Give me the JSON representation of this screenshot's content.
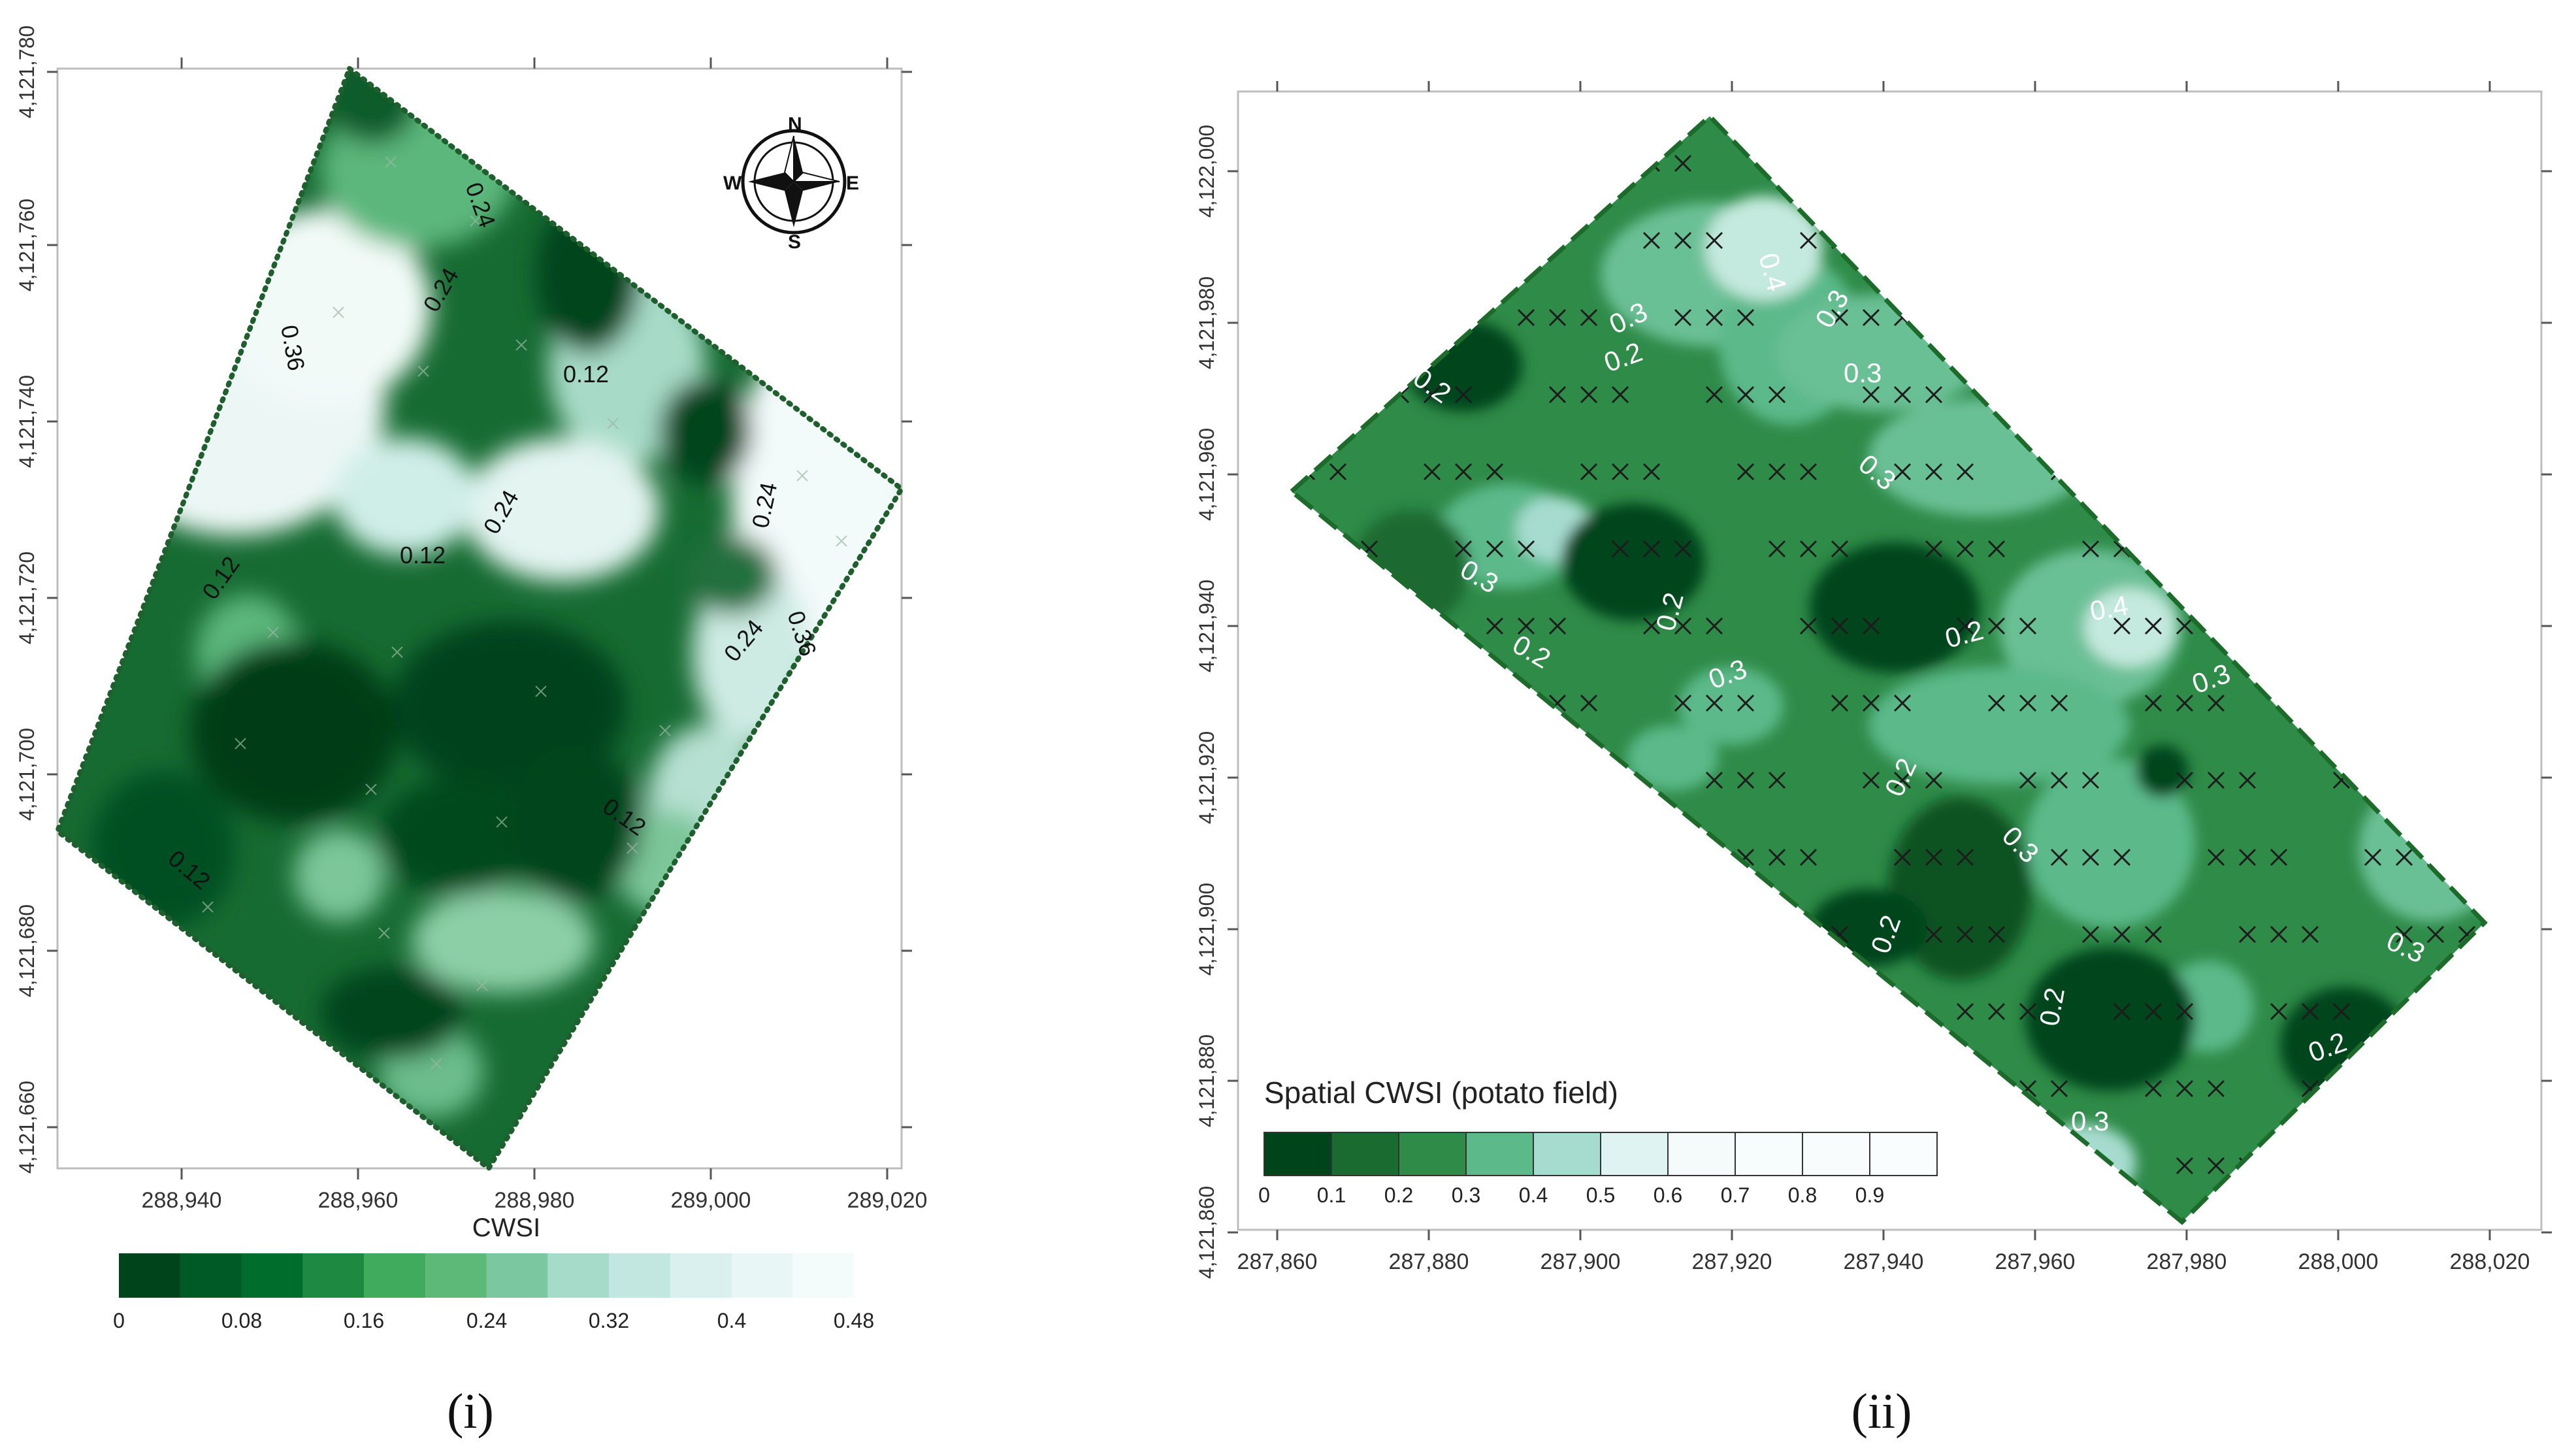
{
  "panels": [
    {
      "id": "i",
      "label_text": "(i)",
      "x_ticks": [
        "288,940",
        "288,960",
        "288,980",
        "289,000",
        "289,020"
      ],
      "y_ticks": [
        "4,121,660",
        "4,121,680",
        "4,121,700",
        "4,121,720",
        "4,121,740",
        "4,121,760",
        "4,121,780"
      ],
      "x_axis_title": "CWSI",
      "contour_labels": [
        "0.24",
        "0.24",
        "0.36",
        "0.12",
        "0.24",
        "0.24",
        "0.12",
        "0.12",
        "0.24",
        "0.36",
        "0.12",
        "0.12"
      ],
      "compass": {
        "n": "N",
        "s": "S",
        "e": "E",
        "w": "W"
      },
      "legend": {
        "ticks": [
          "0",
          "0.08",
          "0.16",
          "0.24",
          "0.32",
          "0.4",
          "0.48"
        ],
        "colors": [
          "#00441b",
          "#005a26",
          "#006d2c",
          "#1e8a41",
          "#41ab5d",
          "#5cb978",
          "#7bc8a0",
          "#a6dbc9",
          "#c1e7e0",
          "#d9f0ee",
          "#e8f6f6",
          "#f4fbfb"
        ]
      }
    },
    {
      "id": "ii",
      "label_text": "(ii)",
      "x_ticks": [
        "287,860",
        "287,880",
        "287,900",
        "287,920",
        "287,940",
        "287,960",
        "287,980",
        "288,000",
        "288,020"
      ],
      "y_ticks": [
        "4,121,860",
        "4,121,880",
        "4,121,900",
        "4,121,920",
        "4,121,940",
        "4,121,960",
        "4,121,980",
        "4,122,000"
      ],
      "contour_labels": [
        "0.2",
        "0.2",
        "0.3",
        "0.4",
        "0.3",
        "0.3",
        "0.3",
        "0.3",
        "0.2",
        "0.2",
        "0.3",
        "0.2",
        "0.4",
        "0.3",
        "0.2",
        "0.3",
        "0.2",
        "0.2",
        "0.3",
        "0.2",
        "0.3"
      ],
      "legend": {
        "title": "Spatial CWSI (potato field)",
        "ticks": [
          "0",
          "0.1",
          "0.2",
          "0.3",
          "0.4",
          "0.5",
          "0.6",
          "0.7",
          "0.8",
          "0.9"
        ],
        "colors": [
          "#00441b",
          "#1a6b30",
          "#2e8b48",
          "#5cb98a",
          "#a6dbcf",
          "#e0f3f3",
          "#f5fbfb",
          "#f7fcfc",
          "#f8fcfc",
          "#f9fdfd"
        ]
      }
    }
  ]
}
